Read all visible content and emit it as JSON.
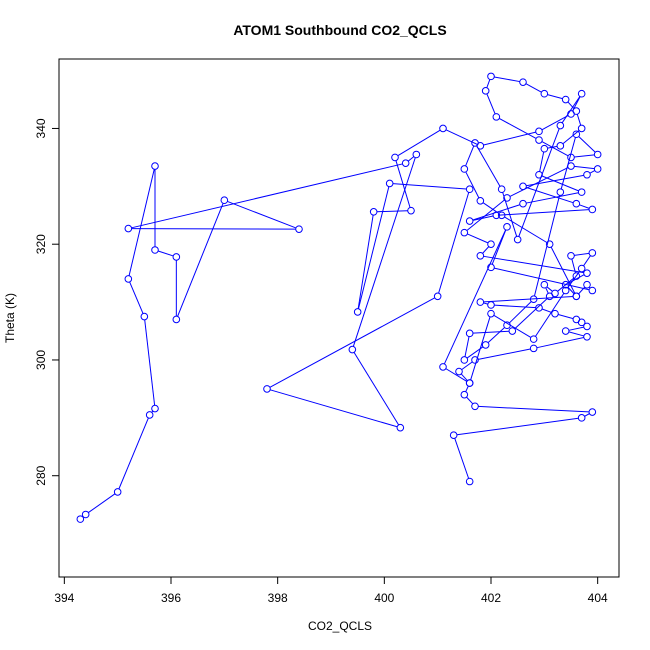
{
  "chart_data": {
    "type": "scatter",
    "title": "ATOM1 Southbound CO2_QCLS",
    "xlabel": "CO2_QCLS",
    "ylabel": "Theta (K)",
    "xlim": [
      393.9,
      404.4
    ],
    "ylim": [
      262.5,
      352.0
    ],
    "xticks": [
      394,
      396,
      398,
      400,
      402,
      404
    ],
    "yticks": [
      280,
      300,
      320,
      340
    ],
    "grid": false,
    "legend": "none",
    "point_style": "open-circle",
    "connected": true,
    "color": "#0000ff",
    "x": [
      394.3,
      394.4,
      395.0,
      395.6,
      395.7,
      395.5,
      395.2,
      395.7,
      395.7,
      396.1,
      396.1,
      397.0,
      398.4,
      395.2,
      400.4,
      400.6,
      399.4,
      400.3,
      397.8,
      401.0,
      401.6,
      400.1,
      399.5,
      399.8,
      400.5,
      400.2,
      401.1,
      401.8,
      402.9,
      403.5,
      403.7,
      403.3,
      402.5,
      402.2,
      401.7,
      401.5,
      401.8,
      402.2,
      403.1,
      403.6,
      403.8,
      403.9,
      402.0,
      402.3,
      401.1,
      401.6,
      402.0,
      402.8,
      403.4,
      403.7,
      403.9,
      403.5,
      403.6,
      403.2,
      403.0,
      403.1,
      402.4,
      401.6,
      401.5,
      401.9,
      402.3,
      402.8,
      403.3,
      403.6,
      404.0,
      403.5,
      402.9,
      402.1,
      401.9,
      402.0,
      402.6,
      403.0,
      403.4,
      403.6,
      403.7,
      403.3,
      403.0,
      402.9,
      403.7,
      402.6,
      401.6,
      402.1,
      403.9,
      403.6,
      402.6,
      403.8,
      404.0,
      403.5,
      402.3,
      401.5,
      402.0,
      401.8,
      403.8,
      403.4,
      403.6,
      401.8,
      402.0,
      402.9,
      403.2,
      403.6,
      403.7,
      403.8,
      403.4,
      403.8,
      402.8,
      401.7,
      401.4,
      401.6,
      401.5,
      401.7,
      403.9,
      403.7,
      401.3,
      401.6
    ],
    "y": [
      272.5,
      273.3,
      277.2,
      290.5,
      291.6,
      307.5,
      314.0,
      333.5,
      319.0,
      317.8,
      307.0,
      327.6,
      322.6,
      322.7,
      334.0,
      335.5,
      301.8,
      288.3,
      295.0,
      311.0,
      329.5,
      330.5,
      308.3,
      325.6,
      325.8,
      335.0,
      340.0,
      337.0,
      339.5,
      342.5,
      346.0,
      340.5,
      320.8,
      329.5,
      337.5,
      333.0,
      327.5,
      325.0,
      320.0,
      311.0,
      313.0,
      312.0,
      316.0,
      323.0,
      298.8,
      296.0,
      308.0,
      303.6,
      312.0,
      315.8,
      318.5,
      318.0,
      314.5,
      311.5,
      313.0,
      311.0,
      305.0,
      304.6,
      300.0,
      302.6,
      306.0,
      310.5,
      329.0,
      339.0,
      335.5,
      335.0,
      338.0,
      342.0,
      346.5,
      349.0,
      348.0,
      346.0,
      345.0,
      343.0,
      340.0,
      337.0,
      336.5,
      332.0,
      329.0,
      327.0,
      324.0,
      325.0,
      326.0,
      327.0,
      330.0,
      332.0,
      333.0,
      333.5,
      328.0,
      322.0,
      320.0,
      318.0,
      315.0,
      313.0,
      311.0,
      310.0,
      309.5,
      309.0,
      308.0,
      307.0,
      306.5,
      305.8,
      305.0,
      304.0,
      302.0,
      300.0,
      298.0,
      296.0,
      294.0,
      292.0,
      291.0,
      290.0,
      287.0,
      279.0
    ]
  }
}
